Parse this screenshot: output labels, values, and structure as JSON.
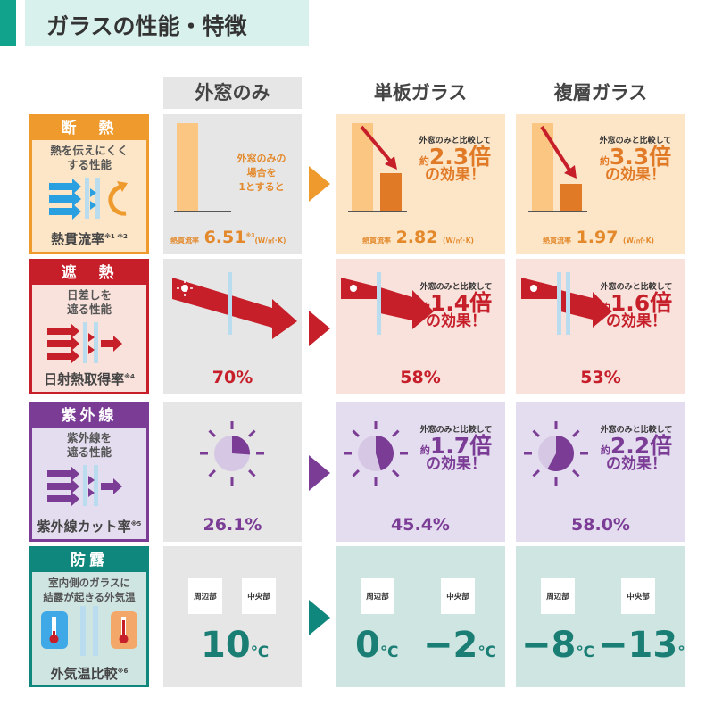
{
  "title": "ガラスの性能・特徴",
  "columns": [
    "外窓のみ",
    "単板ガラス",
    "複層ガラス"
  ],
  "colors": {
    "orange": "#ef9a2c",
    "red": "#c61f2a",
    "purple": "#7b3c96",
    "teal": "#0f877c",
    "accent": "#12a38d"
  },
  "rows": {
    "insulation": {
      "header": "断　熱",
      "desc1": "熱を伝えにくく",
      "desc2": "する性能",
      "footer": "熱貫流率",
      "note": "※1 ※2",
      "base_text1": "外窓のみの",
      "base_text2": "場合を",
      "base_text3": "1とすると",
      "metric_label": "熱貫流率",
      "unit": "(W/㎡･K)",
      "base_note": "※3",
      "values": [
        "6.51",
        "2.82",
        "1.97"
      ],
      "compare": "外窓のみと比較して",
      "approx": "約",
      "ratios": [
        "2.3倍",
        "3.3倍"
      ],
      "effect": "の効果！"
    },
    "shading": {
      "header": "遮　熱",
      "desc1": "日差しを",
      "desc2": "遮る性能",
      "footer": "日射熱取得率",
      "note": "※4",
      "values": [
        "70%",
        "58%",
        "53%"
      ],
      "compare": "外窓のみと比較して",
      "approx": "約",
      "ratios": [
        "1.4倍",
        "1.6倍"
      ],
      "effect": "の効果！"
    },
    "uv": {
      "header": "紫外線",
      "desc1": "紫外線を",
      "desc2": "遮る性能",
      "footer": "紫外線カット率",
      "note": "※5",
      "values": [
        "26.1%",
        "45.4%",
        "58.0%"
      ],
      "compare": "外窓のみと比較して",
      "approx": "約",
      "ratios": [
        "1.7倍",
        "2.2倍"
      ],
      "effect": "の効果！"
    },
    "condensation": {
      "header": "防露",
      "desc1": "室内側のガラスに",
      "desc2": "結露が起きる外気温",
      "footer": "外気温比較",
      "note": "※6",
      "edge": "周辺部",
      "center": "中央部",
      "unit": "℃",
      "base": "10",
      "single_edge": "0",
      "single_center": "−2",
      "double_edge": "−8",
      "double_center": "−13"
    }
  }
}
